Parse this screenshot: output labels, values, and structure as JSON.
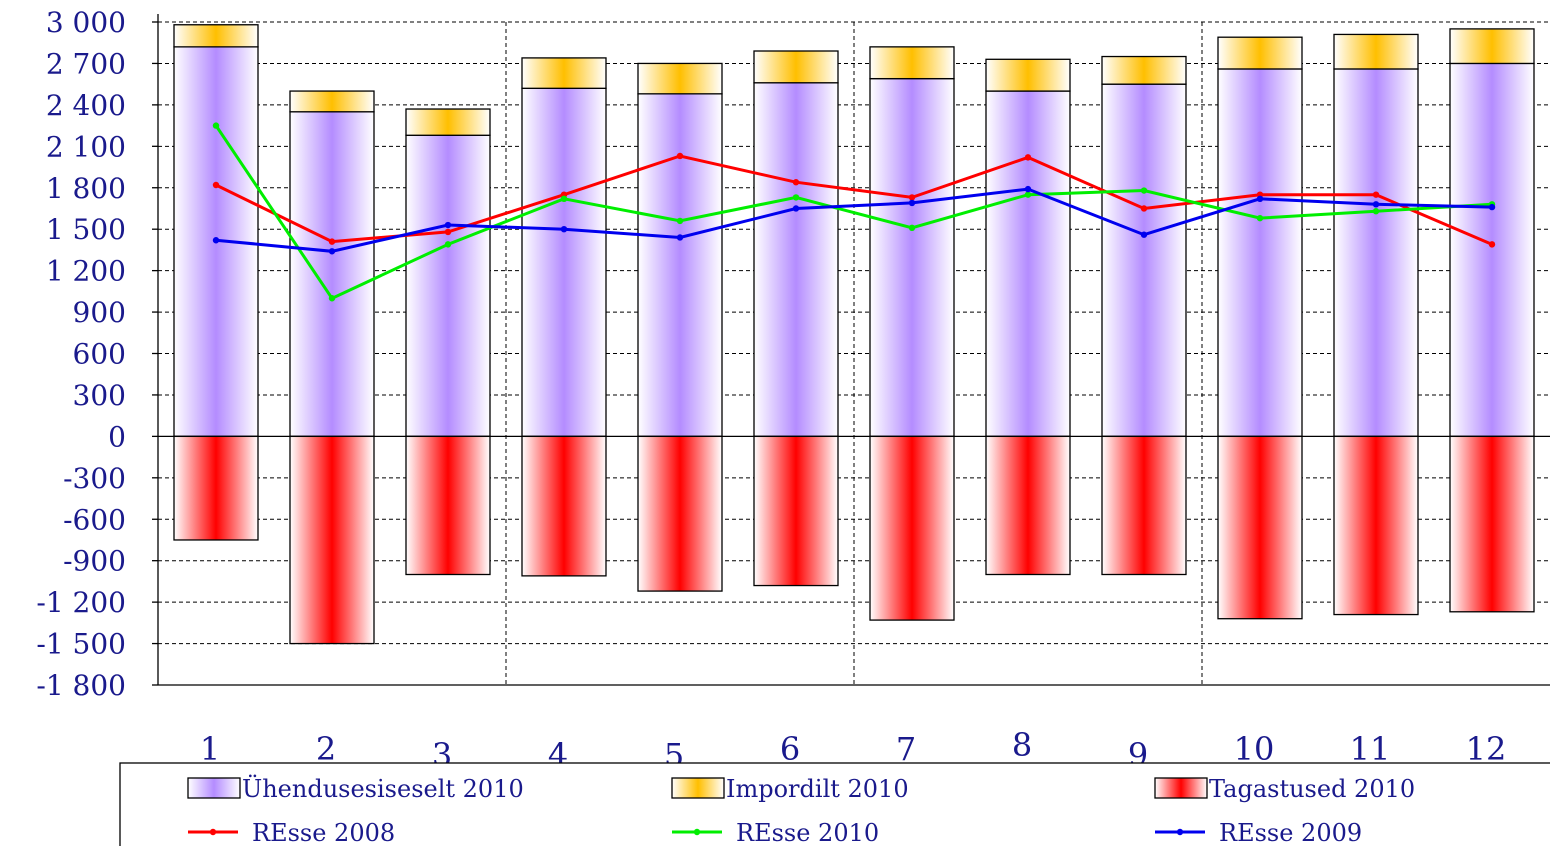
{
  "chart_data": {
    "type": "bar",
    "categories": [
      "1",
      "2",
      "3",
      "4",
      "5",
      "6",
      "7",
      "8",
      "9",
      "10",
      "11",
      "12"
    ],
    "ylim": [
      -1800,
      3000
    ],
    "yticks": [
      3000,
      2700,
      2400,
      2100,
      1800,
      1500,
      1200,
      900,
      600,
      300,
      0,
      -300,
      -600,
      -900,
      -1200,
      -1500,
      -1800
    ],
    "ytick_labels": [
      "3 000",
      "2 700",
      "2 400",
      "2 100",
      "1 800",
      "1 500",
      "1 200",
      "900",
      "600",
      "300",
      "0",
      "-300",
      "-600",
      "-900",
      "-1 200",
      "-1 500",
      "-1 800"
    ],
    "grid": true,
    "legend_position": "bottom",
    "bar_series": [
      {
        "name": "Ühendusesiseselt 2010",
        "stack": "positive",
        "values": [
          2820,
          2350,
          2180,
          2520,
          2480,
          2560,
          2590,
          2500,
          2550,
          2660,
          2660,
          2700
        ],
        "colors": [
          "#b48cff",
          "#ffffff"
        ]
      },
      {
        "name": "Impordilt 2010",
        "stack": "positive",
        "values": [
          160,
          150,
          190,
          220,
          220,
          230,
          230,
          230,
          200,
          230,
          250,
          250
        ],
        "colors": [
          "#ffbf00",
          "#ffffff"
        ]
      },
      {
        "name": "Tagastused 2010",
        "stack": "negative",
        "values": [
          -750,
          -1500,
          -1000,
          -1010,
          -1120,
          -1080,
          -1330,
          -1000,
          -1000,
          -1320,
          -1290,
          -1270
        ],
        "colors": [
          "#ff0000",
          "#ffffff"
        ]
      }
    ],
    "line_series": [
      {
        "name": "REsse 2008",
        "color": "#ff0000",
        "values": [
          1820,
          1410,
          1480,
          1750,
          2030,
          1840,
          1730,
          2020,
          1650,
          1750,
          1750,
          1390
        ]
      },
      {
        "name": "REsse 2010",
        "color": "#00ee00",
        "values": [
          2250,
          1000,
          1390,
          1720,
          1560,
          1730,
          1510,
          1750,
          1780,
          1580,
          1630,
          1680
        ]
      },
      {
        "name": "REsse 2009",
        "color": "#0000ee",
        "values": [
          1420,
          1340,
          1530,
          1500,
          1440,
          1650,
          1690,
          1790,
          1460,
          1720,
          1680,
          1660
        ]
      }
    ]
  }
}
